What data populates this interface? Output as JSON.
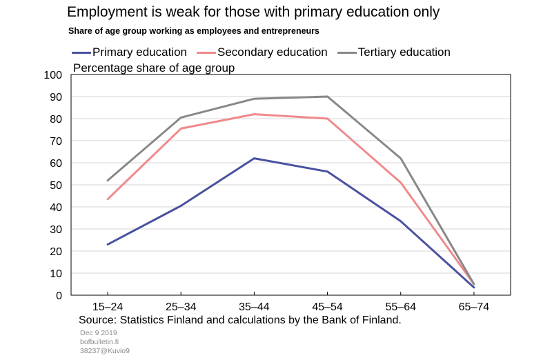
{
  "title": "Employment is weak for those with primary education only",
  "subtitle": "Share of age group working as employees and entrepreneurs",
  "footer": {
    "source": "Source: Statistics Finland and calculations by the Bank of Finland.",
    "date": "Dec 9 2019",
    "site": "bofbulletin.fi",
    "ref": "38237@Kuvio9"
  },
  "chart_data": {
    "type": "line",
    "title": "Employment is weak for those with primary education only",
    "subtitle": "Share of age group working as employees and entrepreneurs",
    "xlabel": "",
    "ylabel": "Percentage share of age group",
    "categories": [
      "15–24",
      "25–34",
      "35–44",
      "45–54",
      "55–64",
      "65–74"
    ],
    "ylim": [
      0,
      100
    ],
    "yticks": [
      0,
      10,
      20,
      30,
      40,
      50,
      60,
      70,
      80,
      90,
      100
    ],
    "grid": true,
    "legend_position": "top",
    "series": [
      {
        "name": "Primary education",
        "color": "#4a519f",
        "values": [
          23,
          40.5,
          62,
          56,
          33.5,
          3.5
        ]
      },
      {
        "name": "Secondary education",
        "color": "#f08a8c",
        "values": [
          43.5,
          75.5,
          82,
          80,
          51,
          5
        ]
      },
      {
        "name": "Tertiary education",
        "color": "#888888",
        "values": [
          52,
          80.5,
          89,
          90,
          62,
          5
        ]
      }
    ]
  }
}
